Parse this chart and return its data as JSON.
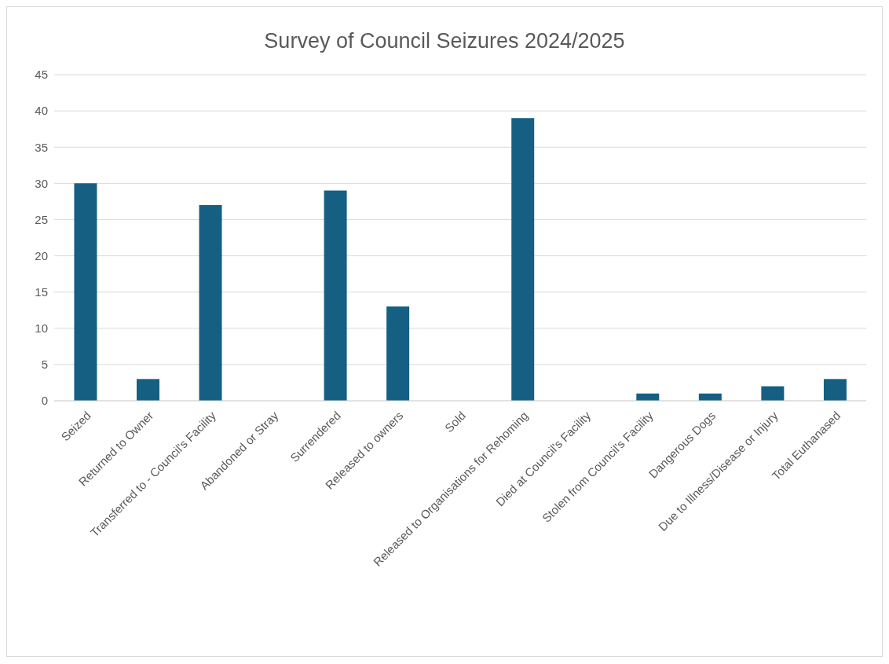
{
  "chart_data": {
    "type": "bar",
    "title": "Survey of Council Seizures 2024/2025",
    "categories": [
      "Seized",
      "Returned to Owner",
      "Transferred to - Council's Facility",
      "Abandoned or Stray",
      "Surrendered",
      "Released to owners",
      "Sold",
      "Released to Organisations for Rehoming",
      "Died at Council's Facility",
      "Stolen from Council's Facility",
      "Dangerous Dogs",
      "Due to Illness/Disease or Injury",
      "Total Euthanased"
    ],
    "values": [
      30,
      3,
      27,
      0,
      29,
      13,
      0,
      39,
      0,
      1,
      1,
      2,
      3
    ],
    "color": "#156082",
    "ylim": [
      0,
      45
    ],
    "yticks": [
      0,
      5,
      10,
      15,
      20,
      25,
      30,
      35,
      40,
      45
    ],
    "grid": "y"
  }
}
